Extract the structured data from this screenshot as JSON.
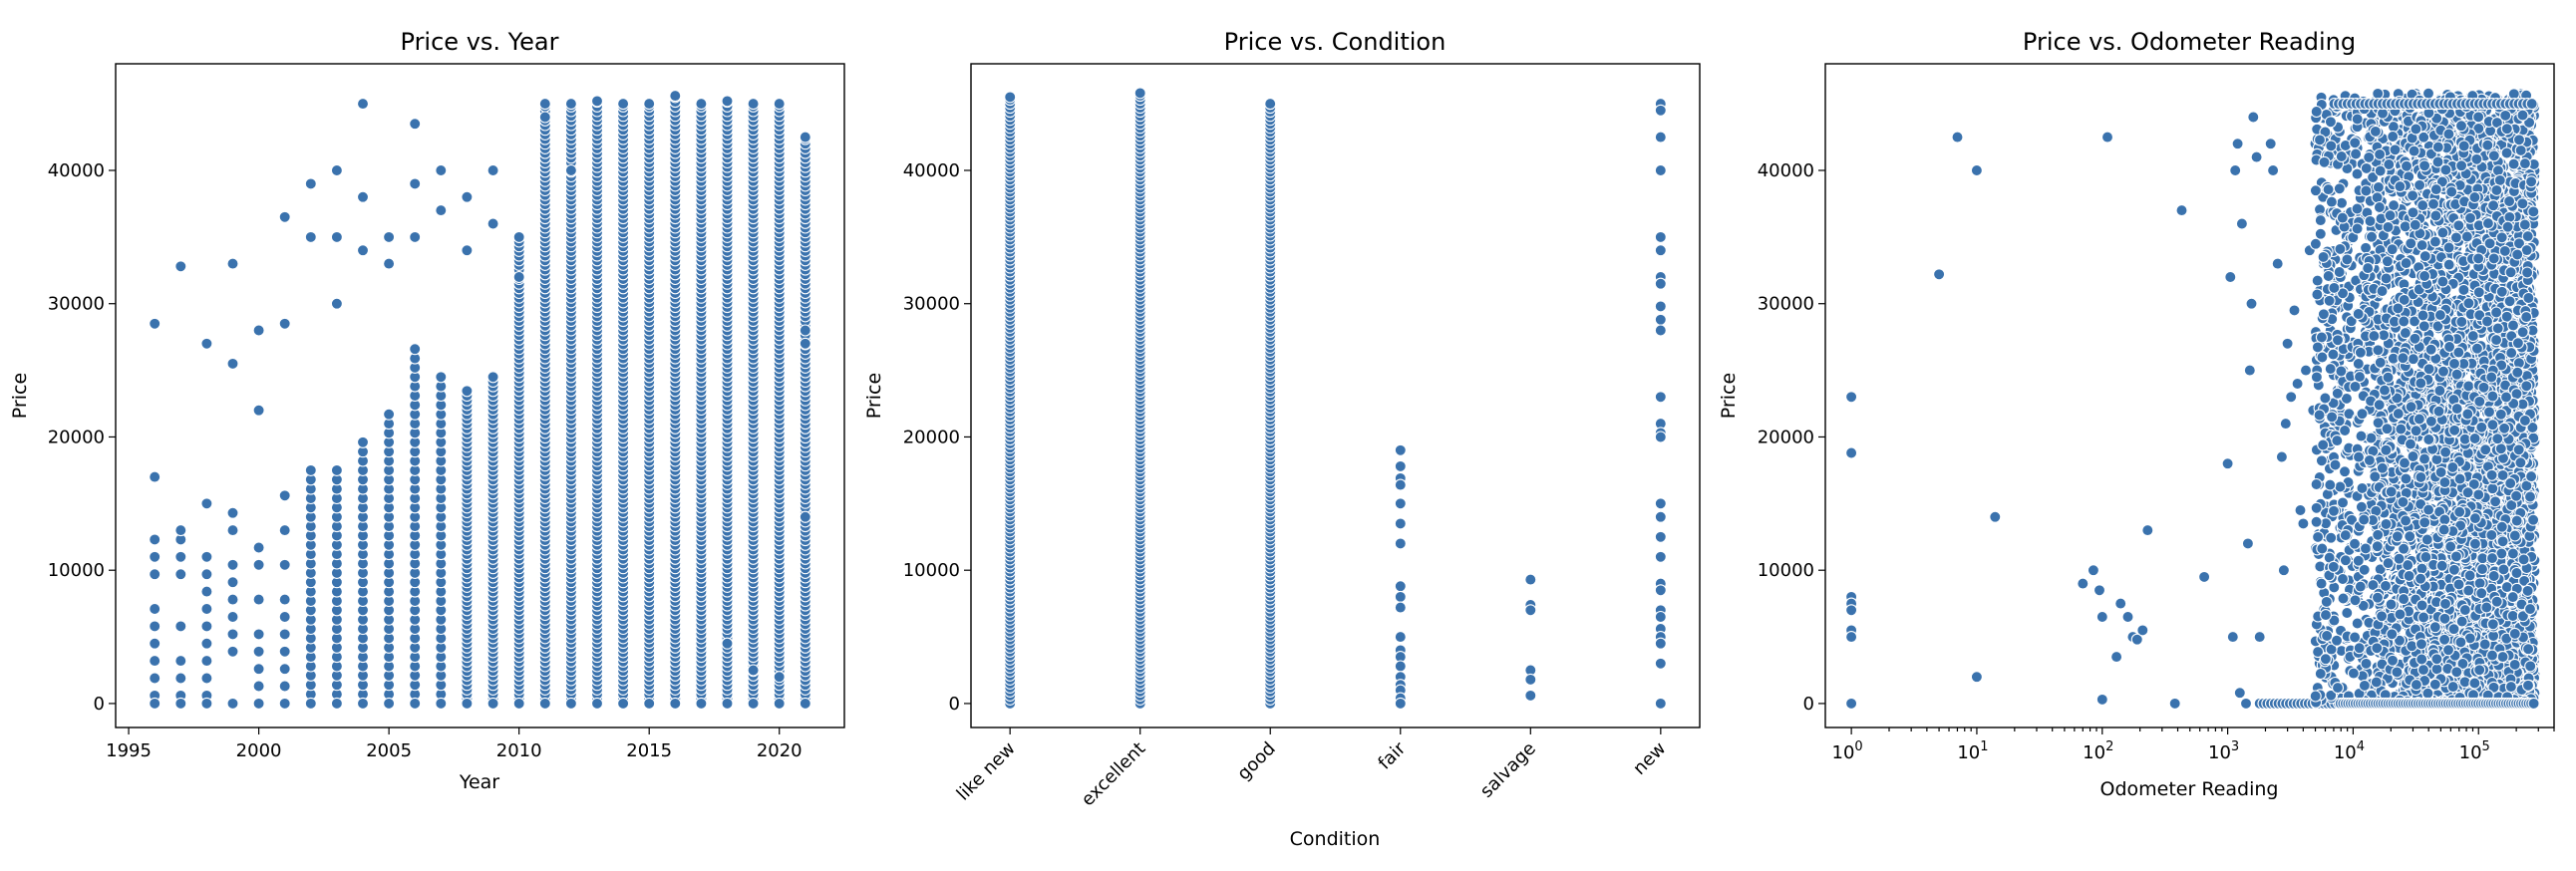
{
  "colors": {
    "marker": "#3a72ad",
    "marker_edge": "#ffffff",
    "axes": "#000000",
    "background": "#ffffff"
  },
  "chart_data": [
    {
      "type": "scatter",
      "title": "Price vs. Year",
      "xlabel": "Year",
      "ylabel": "Price",
      "xlim": [
        1994.5,
        2022.5
      ],
      "ylim": [
        -1800,
        48000
      ],
      "xticks": [
        1995,
        2000,
        2005,
        2010,
        2015,
        2020
      ],
      "yticks": [
        0,
        10000,
        20000,
        30000,
        40000
      ],
      "grid": false,
      "columns": [
        {
          "x": 1996,
          "max": 28500,
          "extra": [
            17000
          ]
        },
        {
          "x": 1997,
          "max": 32800,
          "extra": [
            13000
          ]
        },
        {
          "x": 1998,
          "max": 27000,
          "extra": [
            15000
          ]
        },
        {
          "x": 1999,
          "max": 33000,
          "extra": [
            25500
          ]
        },
        {
          "x": 2000,
          "max": 28000,
          "extra": [
            22000
          ]
        },
        {
          "x": 2001,
          "max": 36500,
          "extra": [
            28500
          ]
        },
        {
          "x": 2002,
          "max": 39000,
          "extra": [
            35000
          ]
        },
        {
          "x": 2003,
          "max": 40000,
          "extra": [
            35000,
            30000
          ]
        },
        {
          "x": 2004,
          "max": 45000,
          "extra": [
            38000,
            34000
          ]
        },
        {
          "x": 2005,
          "max": 35000,
          "extra": [
            33000
          ]
        },
        {
          "x": 2006,
          "max": 43500,
          "extra": [
            39000,
            35000
          ]
        },
        {
          "x": 2007,
          "max": 40000,
          "extra": [
            37000
          ]
        },
        {
          "x": 2008,
          "max": 38000,
          "extra": [
            34000
          ]
        },
        {
          "x": 2009,
          "max": 40000,
          "extra": [
            36000
          ]
        },
        {
          "x": 2010,
          "max": 35000,
          "extra": [
            32000
          ]
        },
        {
          "x": 2011,
          "max": 45000,
          "extra": [
            44000
          ]
        },
        {
          "x": 2012,
          "max": 45000,
          "extra": [
            40000
          ]
        },
        {
          "x": 2013,
          "max": 45200,
          "extra": []
        },
        {
          "x": 2014,
          "max": 45000,
          "extra": []
        },
        {
          "x": 2015,
          "max": 45000,
          "extra": []
        },
        {
          "x": 2016,
          "max": 45600,
          "extra": []
        },
        {
          "x": 2017,
          "max": 45000,
          "extra": []
        },
        {
          "x": 2018,
          "max": 45200,
          "extra": [
            4500
          ]
        },
        {
          "x": 2019,
          "max": 45000,
          "extra": [
            2500
          ]
        },
        {
          "x": 2020,
          "max": 45000,
          "extra": [
            2000
          ]
        },
        {
          "x": 2021,
          "max": 42500,
          "extra": [
            14000,
            27000,
            28000
          ]
        }
      ]
    },
    {
      "type": "scatter",
      "title": "Price vs. Condition",
      "xlabel": "Condition",
      "ylabel": "Price",
      "categories": [
        "like new",
        "excellent",
        "good",
        "fair",
        "salvage",
        "new"
      ],
      "ylim": [
        -1800,
        48000
      ],
      "yticks": [
        0,
        10000,
        20000,
        30000,
        40000
      ],
      "grid": false,
      "columns": [
        {
          "category": "like new",
          "min": 0,
          "max": 45500,
          "dense": true
        },
        {
          "category": "excellent",
          "min": 0,
          "max": 45800,
          "dense": true
        },
        {
          "category": "good",
          "min": 0,
          "max": 45000,
          "dense": true
        },
        {
          "category": "fair",
          "min": 0,
          "max": 19000,
          "dense": false,
          "points": [
            19000,
            17800,
            16900,
            16400,
            15000,
            13500,
            12000,
            8800,
            8000,
            7200,
            5000,
            4000,
            3500,
            2800,
            2000,
            1400,
            1000,
            400,
            0
          ]
        },
        {
          "category": "salvage",
          "min": 500,
          "max": 9300,
          "dense": false,
          "points": [
            9300,
            7400,
            7000,
            2500,
            1800,
            600
          ]
        },
        {
          "category": "new",
          "min": 0,
          "max": 45000,
          "dense": false,
          "points": [
            45000,
            44500,
            42500,
            40000,
            35000,
            34000,
            32000,
            31500,
            29800,
            28800,
            28000,
            23000,
            21000,
            20300,
            20000,
            15000,
            14000,
            12500,
            11000,
            9000,
            8500,
            7000,
            6500,
            5600,
            5000,
            4500,
            3000,
            0
          ]
        }
      ]
    },
    {
      "type": "scatter",
      "title": "Price vs. Odometer Reading",
      "xlabel": "Odometer Reading",
      "ylabel": "Price",
      "xscale": "log",
      "xlim": [
        0.62,
        400000
      ],
      "ylim": [
        -1800,
        48000
      ],
      "xticks": [
        "10^0",
        "10^1",
        "10^2",
        "10^3",
        "10^4",
        "10^5"
      ],
      "yticks": [
        0,
        10000,
        20000,
        30000,
        40000
      ],
      "grid": false,
      "sparse_points": [
        [
          1,
          23000
        ],
        [
          1,
          18800
        ],
        [
          1,
          8000
        ],
        [
          1,
          7500
        ],
        [
          1,
          7000
        ],
        [
          1,
          5500
        ],
        [
          1,
          5000
        ],
        [
          1,
          0
        ],
        [
          5,
          32200
        ],
        [
          7,
          42500
        ],
        [
          10,
          40000
        ],
        [
          10,
          2000
        ],
        [
          14,
          14000
        ],
        [
          70,
          9000
        ],
        [
          85,
          10000
        ],
        [
          95,
          8500
        ],
        [
          100,
          6500
        ],
        [
          110,
          42500
        ],
        [
          100,
          300
        ],
        [
          130,
          3500
        ],
        [
          140,
          7500
        ],
        [
          160,
          6500
        ],
        [
          175,
          5000
        ],
        [
          190,
          4800
        ],
        [
          210,
          5500
        ],
        [
          230,
          13000
        ],
        [
          380,
          0
        ],
        [
          430,
          37000
        ],
        [
          650,
          9500
        ],
        [
          1000,
          18000
        ],
        [
          1050,
          32000
        ],
        [
          1100,
          5000
        ],
        [
          1150,
          40000
        ],
        [
          1200,
          42000
        ],
        [
          1250,
          800
        ],
        [
          1300,
          36000
        ],
        [
          1400,
          0
        ],
        [
          1450,
          12000
        ],
        [
          1500,
          25000
        ],
        [
          1550,
          30000
        ],
        [
          1600,
          44000
        ],
        [
          1700,
          41000
        ],
        [
          1800,
          5000
        ],
        [
          2000,
          0
        ],
        [
          2200,
          42000
        ],
        [
          2300,
          40000
        ],
        [
          2500,
          33000
        ],
        [
          2700,
          18500
        ],
        [
          2800,
          10000
        ],
        [
          2900,
          21000
        ],
        [
          3000,
          27000
        ],
        [
          3200,
          23000
        ],
        [
          3400,
          29500
        ],
        [
          3600,
          24000
        ],
        [
          3800,
          14500
        ],
        [
          4000,
          13500
        ],
        [
          4200,
          25000
        ],
        [
          4500,
          34000
        ],
        [
          4800,
          22000
        ],
        [
          5000,
          42000
        ],
        [
          5400,
          3000
        ],
        [
          5800,
          33000
        ],
        [
          6200,
          12500
        ],
        [
          6600,
          28000
        ],
        [
          7000,
          16000
        ],
        [
          7500,
          23500
        ],
        [
          8000,
          11000
        ],
        [
          8500,
          36000
        ],
        [
          9000,
          19000
        ],
        [
          9500,
          26000
        ]
      ],
      "zero_row": {
        "from": 1800,
        "to": 12000,
        "y": 0
      },
      "dense_region": {
        "x_from": 10000,
        "x_to": 280000,
        "y_from": 0,
        "y_to": 45800
      }
    }
  ]
}
